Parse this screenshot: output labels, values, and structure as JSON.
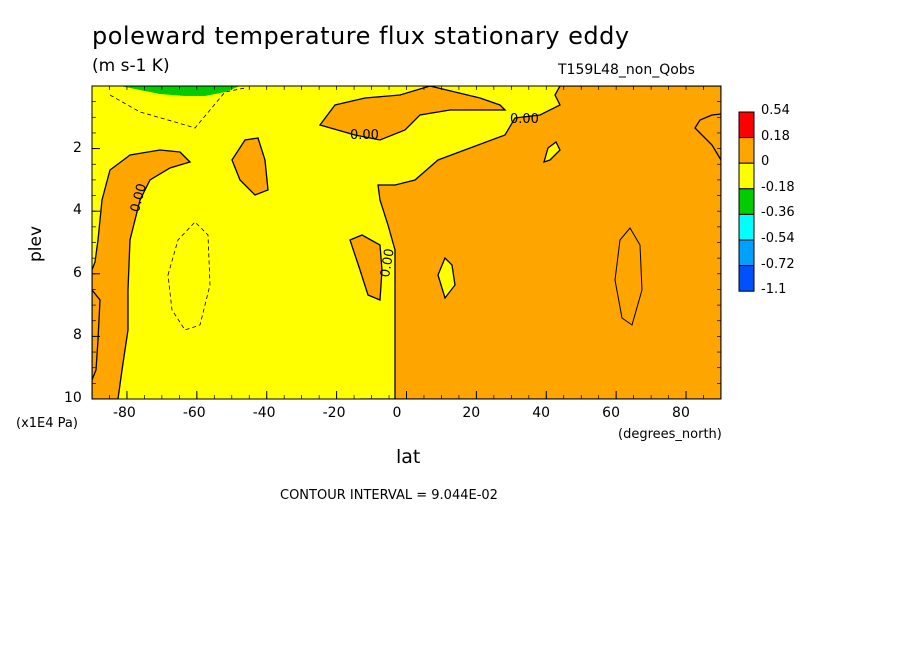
{
  "title": "poleward temperature flux stationary eddy",
  "units": "(m s-1 K)",
  "run_id": "T159L48_non_Qobs",
  "contour_interval_text": "CONTOUR INTERVAL = 9.044E-02",
  "colors": {
    "positive_fill": "#ffa500",
    "near_zero_fill": "#ffff00",
    "green": "#00cc00",
    "cyan": "#00ffff",
    "blue_mid": "#00a0ff",
    "blue": "#0050ff",
    "red": "#ff0000"
  },
  "chart_data": {
    "type": "contour",
    "title": "poleward temperature flux stationary eddy",
    "xlabel": "lat",
    "xunits": "(degrees_north)",
    "ylabel": "plev",
    "ymultiplier": "(x1E4 Pa)",
    "xlim": [
      -90,
      90
    ],
    "ylim": [
      10,
      0
    ],
    "xticks": [
      -80,
      -60,
      -40,
      -20,
      0,
      20,
      40,
      60,
      80
    ],
    "xtick_labels": [
      "-80",
      "-60",
      "-40",
      "-20",
      "0",
      "20",
      "40",
      "60",
      "80"
    ],
    "yticks": [
      2,
      4,
      6,
      8,
      10
    ],
    "ytick_labels": [
      "2",
      "4",
      "6",
      "8",
      "10"
    ],
    "contour_labels": [
      "0.00",
      "0.00",
      "0.00",
      "0.00"
    ],
    "legend": {
      "levels": [
        "0.54",
        "0.18",
        "0",
        "-0.18",
        "-0.36",
        "-0.54",
        "-0.72",
        "-1.1"
      ],
      "colors": [
        "#ff0000",
        "#ffa500",
        "#ffff00",
        "#00cc00",
        "#00ffff",
        "#00a0ff",
        "#0050ff"
      ]
    }
  }
}
